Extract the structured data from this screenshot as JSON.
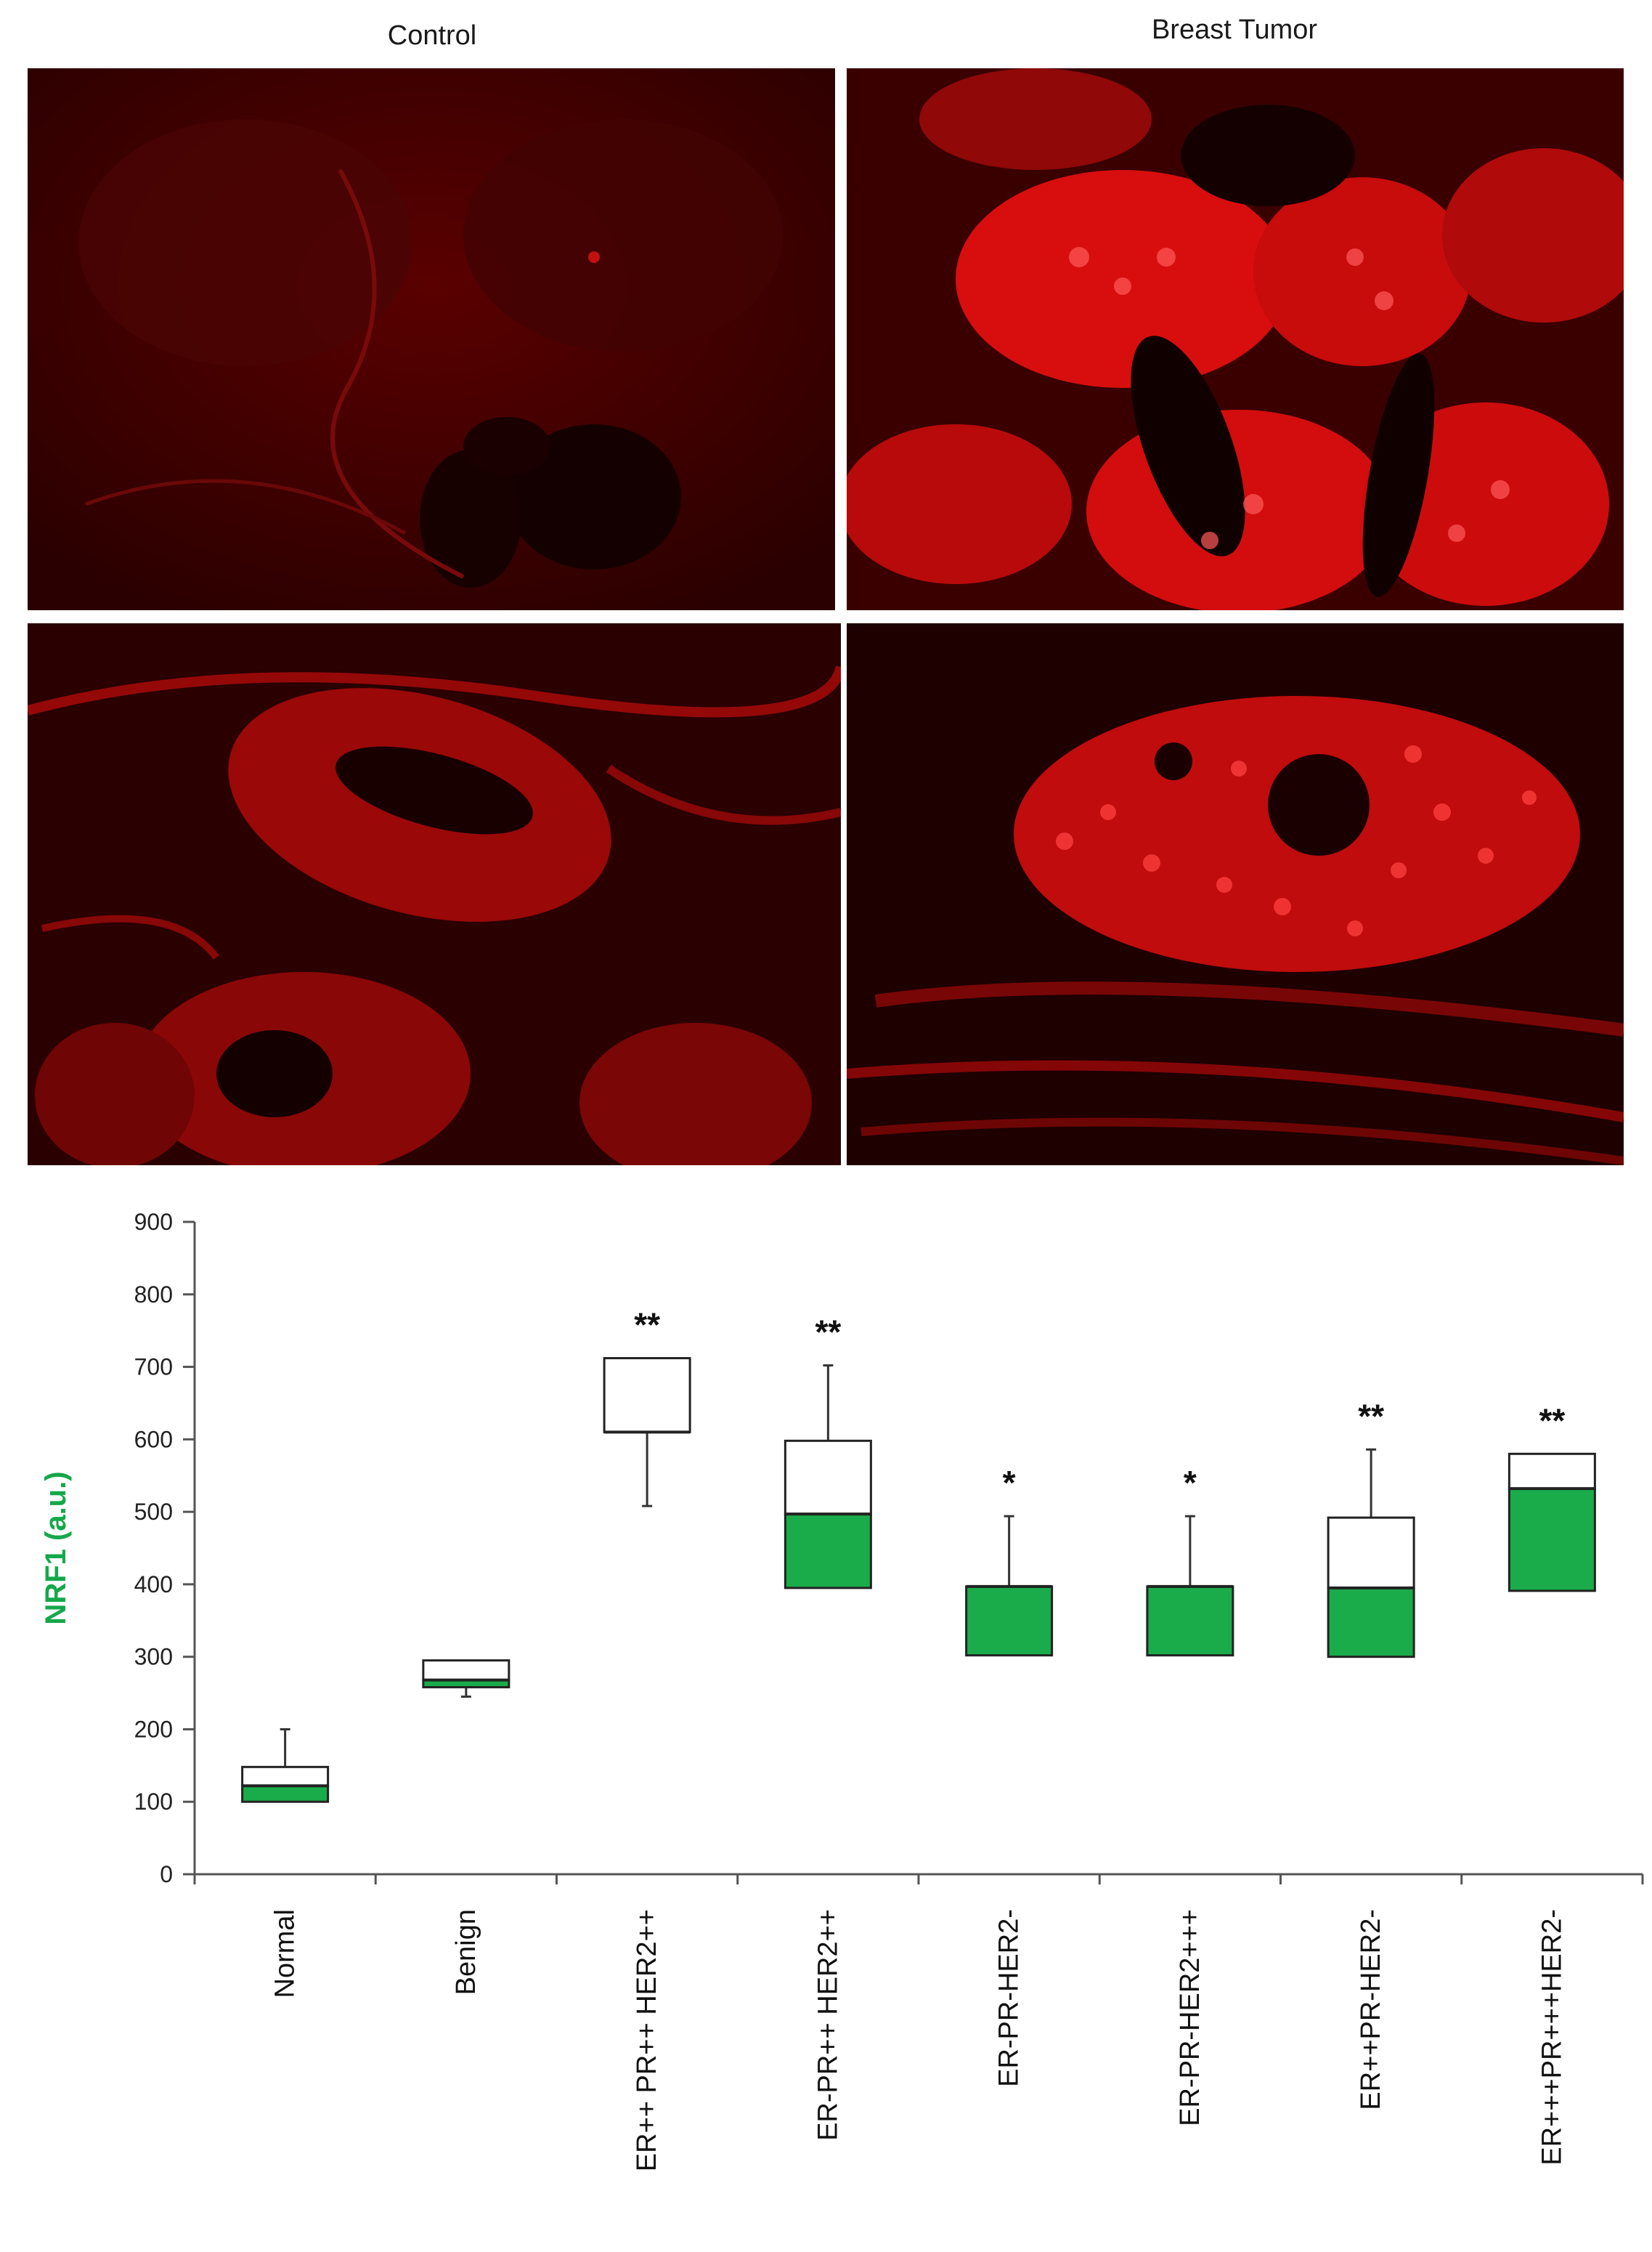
{
  "figure": {
    "control_label": "Control",
    "tumor_label": "Breast Tumor"
  },
  "colors": {
    "tissue_red": "#e00000",
    "box_fill": "#1aab4a",
    "ylabel_color": "#15a84a"
  },
  "chart_data": {
    "type": "box",
    "ylabel": "NRF1 (a.u.)",
    "ylim": [
      0,
      900
    ],
    "yticks": [
      0,
      100,
      200,
      300,
      400,
      500,
      600,
      700,
      800,
      900
    ],
    "categories": [
      "Normal",
      "Benign",
      "ER++ PR++ HER2++",
      "ER-PR++ HER2++",
      "ER-PR-HER2-",
      "ER-PR-HER2+++",
      "ER++PR-HER2-",
      "ER+++PR+++HER2-"
    ],
    "boxes": [
      {
        "q1": 100,
        "median": 122,
        "q3": 148,
        "whisker_low": 100,
        "whisker_high": 200,
        "significance": ""
      },
      {
        "q1": 258,
        "median": 268,
        "q3": 295,
        "whisker_low": 245,
        "whisker_high": 295,
        "significance": ""
      },
      {
        "q1": 610,
        "median": 610,
        "q3": 712,
        "whisker_low": 508,
        "whisker_high": 712,
        "significance": "**"
      },
      {
        "q1": 395,
        "median": 497,
        "q3": 598,
        "whisker_low": 395,
        "whisker_high": 702,
        "significance": "**"
      },
      {
        "q1": 302,
        "median": 397,
        "q3": 397,
        "whisker_low": 302,
        "whisker_high": 494,
        "significance": "*"
      },
      {
        "q1": 302,
        "median": 397,
        "q3": 397,
        "whisker_low": 302,
        "whisker_high": 494,
        "significance": "*"
      },
      {
        "q1": 300,
        "median": 395,
        "q3": 492,
        "whisker_low": 300,
        "whisker_high": 586,
        "significance": "**"
      },
      {
        "q1": 391,
        "median": 532,
        "q3": 580,
        "whisker_low": 391,
        "whisker_high": 580,
        "significance": "**"
      }
    ]
  }
}
